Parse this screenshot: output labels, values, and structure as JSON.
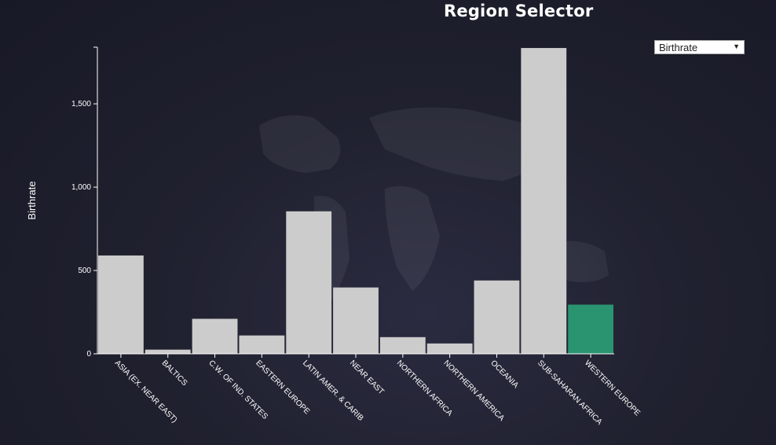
{
  "page": {
    "title": "Region Selector"
  },
  "selector": {
    "selected": "Birthrate",
    "arrow_icon": "triangle-down-icon"
  },
  "colors": {
    "bar": "#cccccc",
    "highlight": "#2a9470",
    "axis": "#ffffff"
  },
  "chart_data": {
    "type": "bar",
    "ylabel": "Birthrate",
    "xlabel": "",
    "ylim": [
      0,
      1840
    ],
    "yticks": [
      0,
      500,
      1000,
      1500
    ],
    "ytick_labels": [
      "0",
      "500",
      "1,000",
      "1,500"
    ],
    "grid": false,
    "categories": [
      "ASIA (EX. NEAR EAST)",
      "BALTICS",
      "C.W. OF IND. STATES",
      "EASTERN EUROPE",
      "LATIN AMER. & CARIB",
      "NEAR EAST",
      "NORTHERN AFRICA",
      "NORTHERN AMERICA",
      "OCEANIA",
      "SUB-SAHARAN AFRICA",
      "WESTERN EUROPE"
    ],
    "values": [
      590,
      25,
      210,
      110,
      855,
      398,
      100,
      62,
      440,
      1835,
      295
    ],
    "highlighted": "WESTERN EUROPE"
  }
}
